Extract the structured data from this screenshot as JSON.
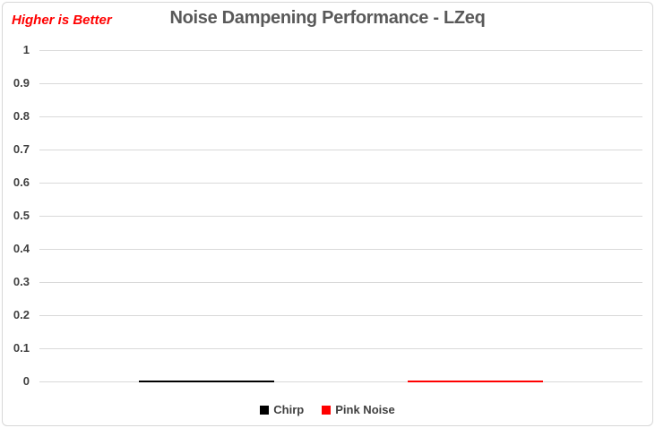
{
  "window": {
    "background": "#FFFFFF",
    "border_color": "#D7D7D7"
  },
  "chart_data": {
    "type": "bar",
    "title": "Noise Dampening Performance - LZeq",
    "title_color": "#595959",
    "annotation": "Higher is Better",
    "annotation_color": "#FF0000",
    "categories": [
      ""
    ],
    "series": [
      {
        "name": "Chirp",
        "color": "#000000",
        "values": [
          0
        ]
      },
      {
        "name": "Pink Noise",
        "color": "#FF0000",
        "values": [
          0
        ]
      }
    ],
    "xlabel": "",
    "ylabel": "",
    "ylim": [
      0,
      1
    ],
    "yticks": [
      "0",
      "0.1",
      "0.2",
      "0.3",
      "0.4",
      "0.5",
      "0.6",
      "0.7",
      "0.8",
      "0.9",
      "1"
    ],
    "grid": true,
    "gridline_color": "#D9D9D9",
    "tick_label_color": "#404040",
    "legend_position": "bottom"
  }
}
